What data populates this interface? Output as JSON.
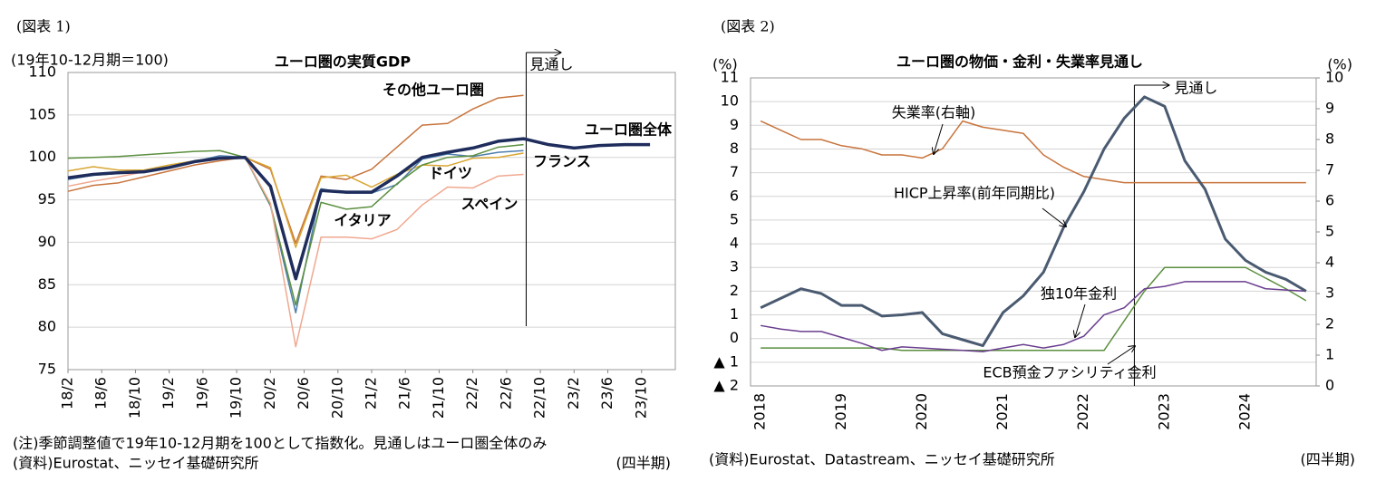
{
  "chart_data": [
    {
      "type": "line",
      "figure_label": "(図表 1)",
      "title": "ユーロ圏の実質GDP",
      "y_unit": "(19年10-12月期＝100)",
      "note": "(注)季節調整値で19年10-12月期を100として指数化。見通しはユーロ圏全体のみ",
      "source": "(資料)Eurostat、ニッセイ基礎研究所",
      "x_unit": "(四半期)",
      "forecast_label": "見通し",
      "x": [
        "2018-02",
        "2018-05",
        "2018-08",
        "2018-11",
        "2019-02",
        "2019-05",
        "2019-08",
        "2019-11",
        "2020-02",
        "2020-05",
        "2020-08",
        "2020-11",
        "2021-02",
        "2021-05",
        "2021-08",
        "2021-11",
        "2022-02",
        "2022-05",
        "2022-08",
        "2022-11",
        "2023-02",
        "2023-05",
        "2023-08",
        "2023-11"
      ],
      "xlim": [
        "2018-02",
        "2024-02"
      ],
      "xticks": [
        {
          "value": "2018-02",
          "label": "18/2"
        },
        {
          "value": "2018-06",
          "label": "18/6"
        },
        {
          "value": "2018-10",
          "label": "18/10"
        },
        {
          "value": "2019-02",
          "label": "19/2"
        },
        {
          "value": "2019-06",
          "label": "19/6"
        },
        {
          "value": "2019-10",
          "label": "19/10"
        },
        {
          "value": "2020-02",
          "label": "20/2"
        },
        {
          "value": "2020-06",
          "label": "20/6"
        },
        {
          "value": "2020-10",
          "label": "20/10"
        },
        {
          "value": "2021-02",
          "label": "21/2"
        },
        {
          "value": "2021-06",
          "label": "21/6"
        },
        {
          "value": "2021-10",
          "label": "21/10"
        },
        {
          "value": "2022-02",
          "label": "22/2"
        },
        {
          "value": "2022-06",
          "label": "22/6"
        },
        {
          "value": "2022-10",
          "label": "22/10"
        },
        {
          "value": "2023-02",
          "label": "23/2"
        },
        {
          "value": "2023-06",
          "label": "23/6"
        },
        {
          "value": "2023-10",
          "label": "23/10"
        }
      ],
      "ylim": [
        75,
        110
      ],
      "yticks": [
        75,
        80,
        85,
        90,
        95,
        100,
        105,
        110
      ],
      "grid": true,
      "series": [
        {
          "name": "その他ユーロ圏",
          "color": "#c8743c",
          "values": [
            96.0,
            96.7,
            97.0,
            97.7,
            98.4,
            99.1,
            99.6,
            100.0,
            98.6,
            89.9,
            97.8,
            97.4,
            98.6,
            101.2,
            103.8,
            104.0,
            105.7,
            107.0,
            107.3,
            null,
            null,
            null,
            null,
            null
          ]
        },
        {
          "name": "ドイツ",
          "color": "#d9a632",
          "values": [
            98.4,
            98.9,
            98.5,
            98.5,
            99.1,
            99.6,
            100.0,
            100.0,
            98.8,
            89.4,
            97.6,
            97.9,
            96.5,
            98.0,
            99.1,
            99.0,
            99.9,
            100.0,
            100.5,
            null,
            null,
            null,
            null,
            null
          ]
        },
        {
          "name": "フランス",
          "color": "#4f7fae",
          "values": [
            97.4,
            97.9,
            98.1,
            98.4,
            98.9,
            99.5,
            100.2,
            100.0,
            94.3,
            81.7,
            96.3,
            95.8,
            95.8,
            96.8,
            99.8,
            100.4,
            100.1,
            100.6,
            100.8,
            null,
            null,
            null,
            null,
            null
          ]
        },
        {
          "name": "イタリア",
          "color": "#5b8f3f",
          "values": [
            99.9,
            100.0,
            100.1,
            100.3,
            100.5,
            100.7,
            100.8,
            100.0,
            94.4,
            82.6,
            94.7,
            93.9,
            94.2,
            96.9,
            99.1,
            100.0,
            100.2,
            101.2,
            101.5,
            null,
            null,
            null,
            null,
            null
          ]
        },
        {
          "name": "スペイン",
          "color": "#f0a890",
          "values": [
            96.6,
            97.2,
            97.7,
            98.3,
            98.9,
            99.4,
            99.8,
            100.0,
            94.6,
            77.7,
            90.6,
            90.6,
            90.4,
            91.5,
            94.4,
            96.5,
            96.4,
            97.8,
            98.0,
            null,
            null,
            null,
            null,
            null
          ]
        },
        {
          "name": "ユーロ圏全体",
          "color": "#1f2d5c",
          "values": [
            97.6,
            98.0,
            98.2,
            98.3,
            98.8,
            99.5,
            99.9,
            100.0,
            96.6,
            85.7,
            96.1,
            95.9,
            95.9,
            97.8,
            100.0,
            100.6,
            101.1,
            101.9,
            102.2,
            101.5,
            101.1,
            101.4,
            101.5,
            101.5
          ]
        }
      ]
    },
    {
      "type": "line",
      "figure_label": "(図表 2)",
      "title": "ユーロ圏の物価・金利・失業率見通し",
      "y_unit": "(%)",
      "y2_unit": "(%)",
      "source": "(資料)Eurostat、Datastream、ニッセイ基礎研究所",
      "x_unit": "(四半期)",
      "forecast_label": "見通し",
      "categories": [
        "2018",
        null,
        null,
        null,
        "2019",
        null,
        null,
        null,
        "2020",
        null,
        null,
        null,
        "2021",
        null,
        null,
        null,
        "2022",
        null,
        null,
        null,
        "2023",
        null,
        null,
        null,
        "2024",
        null,
        null,
        null
      ],
      "ylim": [
        -2,
        11
      ],
      "yticks": [
        {
          "value": -2,
          "label": "▲ 2"
        },
        {
          "value": -1,
          "label": "▲ 1"
        },
        0,
        1,
        2,
        3,
        4,
        5,
        6,
        7,
        8,
        9,
        10,
        11
      ],
      "y2lim": [
        0,
        10
      ],
      "y2ticks": [
        0,
        1,
        2,
        3,
        4,
        5,
        6,
        7,
        8,
        9,
        10
      ],
      "grid": true,
      "series": [
        {
          "name": "失業率(右軸)",
          "color": "#c8743c",
          "axis": "y2",
          "values": [
            8.6,
            8.3,
            8.0,
            8.0,
            7.8,
            7.7,
            7.5,
            7.5,
            7.4,
            7.7,
            8.6,
            8.4,
            8.3,
            8.2,
            7.5,
            7.1,
            6.8,
            6.7,
            6.6,
            6.6,
            6.6,
            6.6,
            6.6,
            6.6,
            6.6,
            6.6,
            6.6,
            6.6
          ]
        },
        {
          "name": "ECB預金ファシリティ金利",
          "color": "#5b8f3f",
          "values": [
            -0.4,
            -0.4,
            -0.4,
            -0.4,
            -0.4,
            -0.4,
            -0.4,
            -0.5,
            -0.5,
            -0.5,
            -0.5,
            -0.5,
            -0.5,
            -0.5,
            -0.5,
            -0.5,
            -0.5,
            -0.5,
            0.75,
            2.0,
            3.0,
            3.0,
            3.0,
            3.0,
            3.0,
            2.55,
            2.1,
            1.6
          ]
        },
        {
          "name": "独10年金利",
          "color": "#6a3d8f",
          "values": [
            0.55,
            0.4,
            0.3,
            0.3,
            0.05,
            -0.2,
            -0.5,
            -0.35,
            -0.4,
            -0.45,
            -0.5,
            -0.55,
            -0.4,
            -0.25,
            -0.4,
            -0.25,
            0.1,
            1.0,
            1.3,
            2.1,
            2.2,
            2.4,
            2.4,
            2.4,
            2.4,
            2.1,
            2.05,
            2.0
          ]
        },
        {
          "name": "HICP上昇率(前年同期比)",
          "color": "#4a5a70",
          "values": [
            1.3,
            1.7,
            2.1,
            1.9,
            1.4,
            1.4,
            0.95,
            1.0,
            1.1,
            0.2,
            -0.05,
            -0.3,
            1.1,
            1.8,
            2.8,
            4.7,
            6.2,
            8.0,
            9.3,
            10.2,
            9.8,
            7.5,
            6.3,
            4.2,
            3.3,
            2.8,
            2.5,
            2.0
          ]
        }
      ]
    }
  ]
}
